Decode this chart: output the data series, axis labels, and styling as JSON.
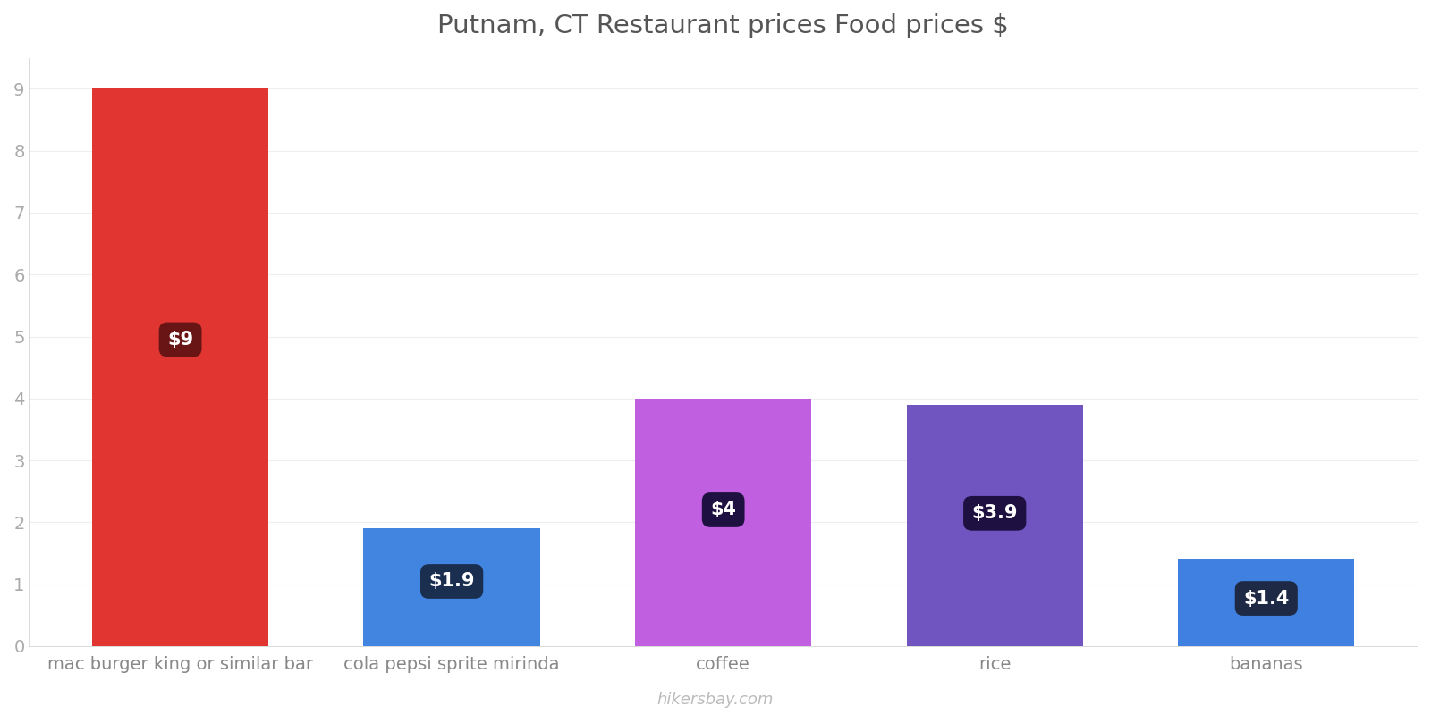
{
  "title": "Putnam, CT Restaurant prices Food prices $",
  "categories": [
    "mac burger king or similar bar",
    "cola pepsi sprite mirinda",
    "coffee",
    "rice",
    "bananas"
  ],
  "values": [
    9,
    1.9,
    4,
    3.9,
    1.4
  ],
  "bar_colors": [
    "#e03530",
    "#4285e0",
    "#c060e0",
    "#7055c0",
    "#4080e0"
  ],
  "label_texts": [
    "$9",
    "$1.9",
    "$4",
    "$3.9",
    "$1.4"
  ],
  "label_bg_colors": [
    "#6a1515",
    "#1a2e50",
    "#1e1040",
    "#1e1040",
    "#1e2a45"
  ],
  "ylim": [
    0,
    9.5
  ],
  "yticks": [
    0,
    1,
    2,
    3,
    4,
    5,
    6,
    7,
    8,
    9
  ],
  "title_fontsize": 21,
  "tick_fontsize": 14,
  "watermark": "hikersbay.com",
  "background_color": "#ffffff",
  "grid_color": "#eeeeee"
}
